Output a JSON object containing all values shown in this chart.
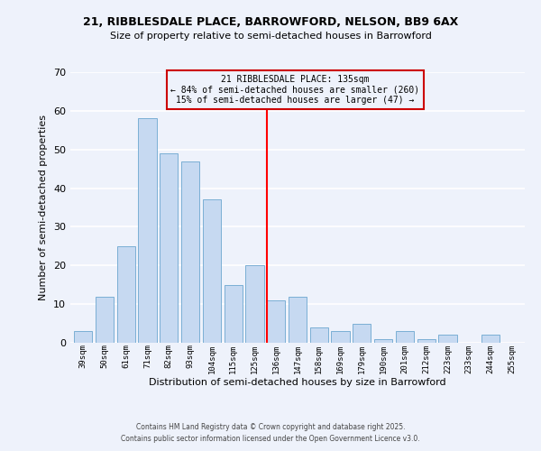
{
  "title1": "21, RIBBLESDALE PLACE, BARROWFORD, NELSON, BB9 6AX",
  "title2": "Size of property relative to semi-detached houses in Barrowford",
  "xlabel": "Distribution of semi-detached houses by size in Barrowford",
  "ylabel": "Number of semi-detached properties",
  "bar_labels": [
    "39sqm",
    "50sqm",
    "61sqm",
    "71sqm",
    "82sqm",
    "93sqm",
    "104sqm",
    "115sqm",
    "125sqm",
    "136sqm",
    "147sqm",
    "158sqm",
    "169sqm",
    "179sqm",
    "190sqm",
    "201sqm",
    "212sqm",
    "223sqm",
    "233sqm",
    "244sqm",
    "255sqm"
  ],
  "bar_values": [
    3,
    12,
    25,
    58,
    49,
    47,
    37,
    15,
    20,
    11,
    12,
    4,
    3,
    5,
    1,
    3,
    1,
    2,
    0,
    2,
    0
  ],
  "bar_color": "#c6d9f1",
  "bar_edge_color": "#7bafd4",
  "annotation_title": "21 RIBBLESDALE PLACE: 135sqm",
  "annotation_line1": "← 84% of semi-detached houses are smaller (260)",
  "annotation_line2": "15% of semi-detached houses are larger (47) →",
  "annotation_box_color": "#cc0000",
  "red_line_index": 9,
  "ylim": [
    0,
    70
  ],
  "yticks": [
    0,
    10,
    20,
    30,
    40,
    50,
    60,
    70
  ],
  "footer1": "Contains HM Land Registry data © Crown copyright and database right 2025.",
  "footer2": "Contains public sector information licensed under the Open Government Licence v3.0.",
  "bg_color": "#eef2fb",
  "grid_color": "#ffffff"
}
